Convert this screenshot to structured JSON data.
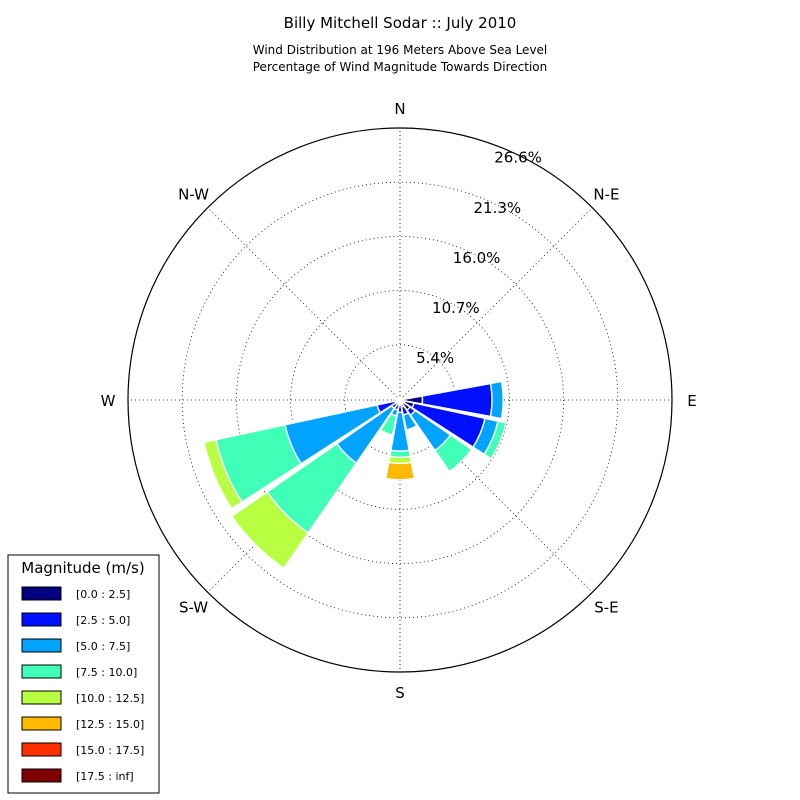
{
  "chart_data": {
    "type": "windrose",
    "title": "Billy Mitchell Sodar :: July 2010",
    "subtitle_lines": [
      "Wind Distribution at 196 Meters Above Sea Level",
      "Percentage of Wind Magnitude Towards Direction"
    ],
    "directions": [
      "N",
      "N-E",
      "E",
      "S-E",
      "S",
      "S-W",
      "W",
      "N-W"
    ],
    "radial_ticks": [
      "5.4%",
      "10.7%",
      "16.0%",
      "21.3%",
      "26.6%"
    ],
    "radial_tick_values": [
      5.4,
      10.7,
      16.0,
      21.3,
      26.6
    ],
    "rmax": 26.6,
    "legend": {
      "title": "Magnitude (m/s)",
      "entries": [
        "[0.0 : 2.5]",
        "[2.5 : 5.0]",
        "[5.0 : 7.5]",
        "[7.5 : 10.0]",
        "[10.0 : 12.5]",
        "[12.5 : 15.0]",
        "[15.0 : 17.5]",
        "[17.5 : inf]"
      ],
      "colors": [
        "#000080",
        "#0010ff",
        "#00a4ff",
        "#40ffb7",
        "#b7ff40",
        "#ffb900",
        "#ff3000",
        "#800000"
      ]
    },
    "bin_width_deg": 22.5,
    "sectors": [
      {
        "angle": 90.0,
        "bins": [
          2.2,
          9.0,
          10.1
        ]
      },
      {
        "angle": 112.5,
        "bins": [
          1.4,
          8.5,
          9.8,
          10.6
        ]
      },
      {
        "angle": 135.0,
        "bins": [
          1.2,
          1.8,
          6.0,
          8.5
        ]
      },
      {
        "angle": 157.5,
        "bins": [
          0.7,
          1.5,
          3.0
        ]
      },
      {
        "angle": 180.0,
        "bins": [
          0.5,
          1.2,
          5.0,
          5.6,
          6.2,
          7.8
        ]
      },
      {
        "angle": 202.5,
        "bins": [
          0.3,
          1.0,
          1.6,
          3.5
        ]
      },
      {
        "angle": 225.0,
        "bins": [
          0.3,
          1.0,
          7.5,
          15.8,
          20.0
        ]
      },
      {
        "angle": 247.5,
        "bins": [
          0.5,
          2.3,
          11.5,
          18.4,
          19.6
        ]
      },
      {
        "angle": 270.0,
        "bins": [
          0.3,
          0.7
        ]
      },
      {
        "angle": 292.5,
        "bins": [
          0.2,
          0.5
        ]
      }
    ]
  }
}
